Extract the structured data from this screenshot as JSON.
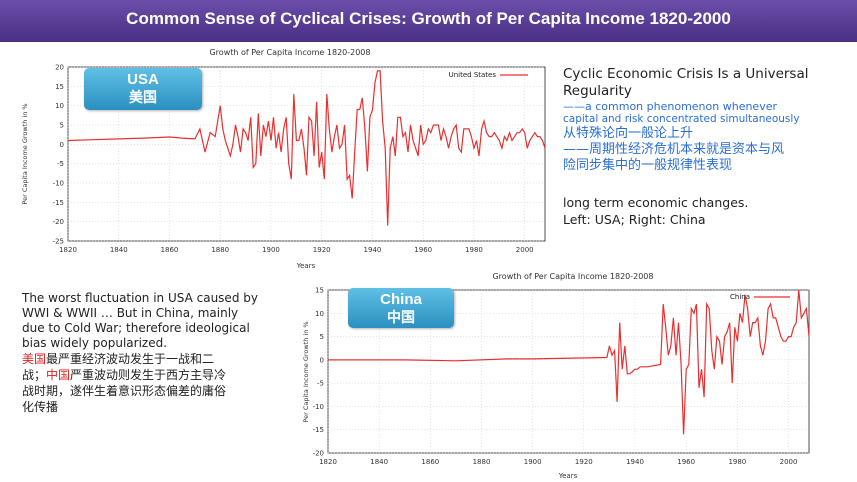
{
  "header": {
    "title": "Common Sense of Cyclical Crises: Growth of Per Capita Income 1820-2000"
  },
  "usa": {
    "badge_en": "USA",
    "badge_zh": "美国"
  },
  "china": {
    "badge_en": "China",
    "badge_zh": "中国"
  },
  "right_text": {
    "heading_line1": "Cyclic Economic Crisis Is a Universal",
    "heading_line2": "Regularity",
    "sub_line1": "——a common phenomenon whenever",
    "sub_line2": "capital and risk concentrated simultaneously",
    "zh_line1": "从特殊论向一般论上升",
    "zh_line2": "——周期性经济危机本来就是资本与风",
    "zh_line3": "险同步集中的一般规律性表现",
    "note_line1": "long term economic changes.",
    "note_line2": "Left: USA; Right: China"
  },
  "bottom_text": {
    "en_line1": "The worst fluctuation in USA caused by",
    "en_line2": "WWI & WWII … But in China, mainly",
    "en_line3": "due to Cold War; therefore ideological",
    "en_line4": "bias widely popularized.",
    "zh_red1": "美国",
    "zh_part1": "最严重经济波动发生于一战和二",
    "zh_part2": "战；",
    "zh_red2": "中国",
    "zh_part3": "严重波动则发生于西方主导冷",
    "zh_line3": "战时期，遂伴生着意识形态偏差的庸俗",
    "zh_line4": "化传播"
  },
  "colors": {
    "line": "#e83030",
    "header": "#54388f",
    "badge": "#2f95c6",
    "blue_text": "#2a6fd6",
    "red_text": "#e02020"
  },
  "chart_data": [
    {
      "type": "line",
      "title": "Growth of Per Capita Income 1820-2008",
      "xlabel": "Years",
      "ylabel": "Per Capita Income Growth in %",
      "xlim": [
        1820,
        2008
      ],
      "ylim": [
        -25,
        20
      ],
      "xticks": [
        "1820",
        "1840",
        "1860",
        "1880",
        "1900",
        "1920",
        "1940",
        "1960",
        "1980",
        "2000"
      ],
      "yticks": [
        "20",
        "15",
        "10",
        "5",
        "0",
        "-5",
        "-10",
        "-15",
        "-20",
        "-25"
      ],
      "legend": "top-right",
      "grid": true,
      "series": [
        {
          "name": "United States",
          "x": [
            1820,
            1830,
            1840,
            1850,
            1860,
            1865,
            1870,
            1872,
            1874,
            1876,
            1878,
            1880,
            1881,
            1882,
            1883,
            1884,
            1885,
            1886,
            1887,
            1888,
            1889,
            1890,
            1891,
            1892,
            1893,
            1894,
            1895,
            1896,
            1897,
            1898,
            1899,
            1900,
            1901,
            1902,
            1903,
            1904,
            1905,
            1906,
            1907,
            1908,
            1909,
            1910,
            1911,
            1912,
            1913,
            1914,
            1915,
            1916,
            1917,
            1918,
            1919,
            1920,
            1921,
            1922,
            1923,
            1924,
            1925,
            1926,
            1927,
            1928,
            1929,
            1930,
            1931,
            1932,
            1933,
            1934,
            1935,
            1936,
            1937,
            1938,
            1939,
            1940,
            1941,
            1942,
            1943,
            1944,
            1945,
            1946,
            1947,
            1948,
            1949,
            1950,
            1951,
            1952,
            1953,
            1954,
            1955,
            1956,
            1957,
            1958,
            1959,
            1960,
            1961,
            1962,
            1963,
            1964,
            1965,
            1966,
            1967,
            1968,
            1969,
            1970,
            1971,
            1972,
            1973,
            1974,
            1975,
            1976,
            1977,
            1978,
            1979,
            1980,
            1981,
            1982,
            1983,
            1984,
            1985,
            1986,
            1987,
            1988,
            1989,
            1990,
            1991,
            1992,
            1993,
            1994,
            1995,
            1996,
            1997,
            1998,
            1999,
            2000,
            2001,
            2002,
            2003,
            2004,
            2005,
            2006,
            2007,
            2008
          ],
          "values": [
            1,
            1.2,
            1.4,
            1.6,
            1.9,
            1.6,
            1.4,
            4,
            -2,
            3,
            2,
            10,
            4,
            1,
            -1,
            -3,
            0,
            5,
            2,
            -2,
            4,
            3,
            1,
            7,
            -6,
            -5,
            8,
            -3,
            5,
            2,
            6,
            1,
            7,
            -1,
            3,
            -2,
            4,
            7,
            -5,
            -9,
            13,
            1,
            1,
            4,
            -1,
            -8,
            7,
            6,
            -3,
            11,
            -6,
            -2,
            -9,
            13,
            4,
            -2,
            2,
            5,
            -1,
            0,
            5,
            -9,
            -8,
            -14,
            -2,
            9,
            9,
            12,
            4,
            -7,
            7,
            9,
            16,
            19,
            19,
            6,
            -1,
            -21,
            -1,
            2,
            -3,
            7,
            7,
            2,
            3,
            -2,
            5,
            1,
            -1,
            -3,
            5,
            0,
            1,
            4,
            3,
            5,
            5,
            5,
            1,
            4,
            2,
            -1,
            2,
            4,
            5,
            -1,
            -2,
            4,
            4,
            4,
            2,
            -1,
            1,
            -3,
            4,
            6,
            3,
            2,
            2,
            3,
            2,
            1,
            -1,
            2,
            1,
            3,
            1,
            2,
            3,
            3,
            4,
            3,
            -1,
            1,
            2,
            3,
            2,
            2,
            1,
            -1
          ]
        }
      ]
    },
    {
      "type": "line",
      "title": "Growth of Per Capita Income 1820-2008",
      "xlabel": "Years",
      "ylabel": "Per Capita Income Growth in %",
      "xlim": [
        1820,
        2008
      ],
      "ylim": [
        -20,
        15
      ],
      "xticks": [
        "1820",
        "1840",
        "1860",
        "1880",
        "1900",
        "1920",
        "1940",
        "1960",
        "1980",
        "2000"
      ],
      "yticks": [
        "15",
        "10",
        "5",
        "0",
        "-5",
        "-10",
        "-15",
        "-20"
      ],
      "legend": "top-right",
      "grid": true,
      "series": [
        {
          "name": "China",
          "x": [
            1820,
            1850,
            1870,
            1890,
            1900,
            1929,
            1930,
            1931,
            1932,
            1933,
            1934,
            1935,
            1936,
            1937,
            1938,
            1939,
            1940,
            1941,
            1942,
            1945,
            1950,
            1951,
            1952,
            1953,
            1954,
            1955,
            1956,
            1957,
            1958,
            1959,
            1960,
            1961,
            1962,
            1963,
            1964,
            1965,
            1966,
            1967,
            1968,
            1969,
            1970,
            1971,
            1972,
            1973,
            1974,
            1975,
            1976,
            1977,
            1978,
            1979,
            1980,
            1981,
            1982,
            1983,
            1984,
            1985,
            1986,
            1987,
            1988,
            1989,
            1990,
            1991,
            1992,
            1993,
            1994,
            1995,
            1996,
            1997,
            1998,
            1999,
            2000,
            2001,
            2002,
            2003,
            2004,
            2005,
            2006,
            2007,
            2008
          ],
          "values": [
            0,
            0,
            -0.2,
            0.2,
            0.2,
            0.5,
            3,
            1,
            2,
            -9,
            8,
            -2,
            3,
            -3,
            -3,
            -2.5,
            -2,
            -2,
            -1.5,
            -1.5,
            -1,
            12,
            7,
            1,
            3,
            9,
            1,
            8,
            -1,
            -16,
            -2,
            -1,
            11,
            10,
            12,
            -6,
            -2,
            -8,
            12,
            11,
            2,
            -2,
            5,
            4,
            -1,
            5,
            6,
            8,
            -5,
            7,
            4,
            10,
            8,
            14,
            11,
            5,
            8,
            8,
            9,
            3,
            1,
            4,
            11,
            12,
            9,
            9,
            7,
            5,
            4,
            4,
            5,
            5,
            7,
            8,
            15,
            9,
            10,
            11,
            5
          ]
        }
      ]
    }
  ]
}
